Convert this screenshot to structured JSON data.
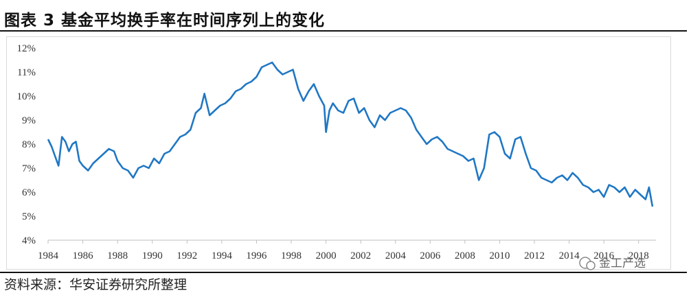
{
  "header": {
    "title": "图表 3 基金平均换手率在时间序列上的变化"
  },
  "footer": {
    "source": "资料来源：华安证券研究所整理"
  },
  "watermark": {
    "text": "金工产选"
  },
  "colors": {
    "line": "#1f77c4",
    "axis": "#bfbfbf",
    "frame": "#d9d9d9"
  },
  "chart_data": {
    "type": "line",
    "title": "",
    "xlabel": "",
    "ylabel": "",
    "xlim": [
      1984,
      2019
    ],
    "ylim": [
      4,
      12
    ],
    "y_ticks": [
      4,
      5,
      6,
      7,
      8,
      9,
      10,
      11,
      12
    ],
    "y_tick_labels": [
      "4%",
      "5%",
      "6%",
      "7%",
      "8%",
      "9%",
      "10%",
      "11%",
      "12%"
    ],
    "x_ticks": [
      1984,
      1986,
      1988,
      1990,
      1992,
      1994,
      1996,
      1998,
      2000,
      2002,
      2004,
      2006,
      2008,
      2010,
      2012,
      2014,
      2016,
      2018
    ],
    "x_tick_labels": [
      "1984",
      "1986",
      "1988",
      "1990",
      "1992",
      "1994",
      "1996",
      "1998",
      "2000",
      "2002",
      "2004",
      "2006",
      "2008",
      "2010",
      "2012",
      "2014",
      "2016",
      "2018"
    ],
    "series": [
      {
        "name": "基金平均换手率",
        "unit": "%",
        "x": [
          1984.0,
          1984.2,
          1984.4,
          1984.6,
          1984.8,
          1985.0,
          1985.2,
          1985.4,
          1985.6,
          1985.8,
          1986.0,
          1986.3,
          1986.6,
          1986.9,
          1987.2,
          1987.5,
          1987.8,
          1988.0,
          1988.3,
          1988.6,
          1988.9,
          1989.2,
          1989.5,
          1989.8,
          1990.1,
          1990.4,
          1990.7,
          1991.0,
          1991.3,
          1991.6,
          1991.9,
          1992.2,
          1992.5,
          1992.8,
          1993.0,
          1993.3,
          1993.6,
          1993.9,
          1994.2,
          1994.5,
          1994.8,
          1995.1,
          1995.4,
          1995.7,
          1996.0,
          1996.3,
          1996.6,
          1996.9,
          1997.2,
          1997.5,
          1997.8,
          1998.1,
          1998.4,
          1998.7,
          1999.0,
          1999.3,
          1999.6,
          1999.9,
          2000.0,
          2000.2,
          2000.4,
          2000.7,
          2001.0,
          2001.3,
          2001.6,
          2001.9,
          2002.2,
          2002.5,
          2002.8,
          2003.1,
          2003.4,
          2003.7,
          2004.0,
          2004.3,
          2004.6,
          2004.9,
          2005.2,
          2005.5,
          2005.8,
          2006.1,
          2006.4,
          2006.7,
          2007.0,
          2007.3,
          2007.6,
          2007.9,
          2008.2,
          2008.5,
          2008.8,
          2009.1,
          2009.4,
          2009.7,
          2010.0,
          2010.3,
          2010.6,
          2010.9,
          2011.2,
          2011.5,
          2011.8,
          2012.1,
          2012.4,
          2012.7,
          2013.0,
          2013.3,
          2013.6,
          2013.9,
          2014.2,
          2014.5,
          2014.8,
          2015.1,
          2015.4,
          2015.7,
          2016.0,
          2016.3,
          2016.6,
          2016.9,
          2017.2,
          2017.5,
          2017.8,
          2018.1,
          2018.4,
          2018.6,
          2018.8
        ],
        "values": [
          8.2,
          7.9,
          7.5,
          7.1,
          8.3,
          8.1,
          7.7,
          8.0,
          8.1,
          7.3,
          7.1,
          6.9,
          7.2,
          7.4,
          7.6,
          7.8,
          7.7,
          7.3,
          7.0,
          6.9,
          6.6,
          7.0,
          7.1,
          7.0,
          7.4,
          7.2,
          7.6,
          7.7,
          8.0,
          8.3,
          8.4,
          8.6,
          9.3,
          9.5,
          10.1,
          9.2,
          9.4,
          9.6,
          9.7,
          9.9,
          10.2,
          10.3,
          10.5,
          10.6,
          10.8,
          11.2,
          11.3,
          11.4,
          11.1,
          10.9,
          11.0,
          11.1,
          10.3,
          9.8,
          10.2,
          10.5,
          10.0,
          9.6,
          8.5,
          9.4,
          9.7,
          9.4,
          9.3,
          9.8,
          9.9,
          9.3,
          9.5,
          9.0,
          8.7,
          9.2,
          9.0,
          9.3,
          9.4,
          9.5,
          9.4,
          9.1,
          8.6,
          8.3,
          8.0,
          8.2,
          8.3,
          8.1,
          7.8,
          7.7,
          7.6,
          7.5,
          7.3,
          7.4,
          6.5,
          7.0,
          8.4,
          8.5,
          8.3,
          7.6,
          7.4,
          8.2,
          8.3,
          7.6,
          7.0,
          6.9,
          6.6,
          6.5,
          6.4,
          6.6,
          6.7,
          6.5,
          6.8,
          6.6,
          6.3,
          6.2,
          6.0,
          6.1,
          5.8,
          6.3,
          6.2,
          6.0,
          6.2,
          5.8,
          6.1,
          5.9,
          5.7,
          6.2,
          5.4
        ]
      }
    ]
  }
}
